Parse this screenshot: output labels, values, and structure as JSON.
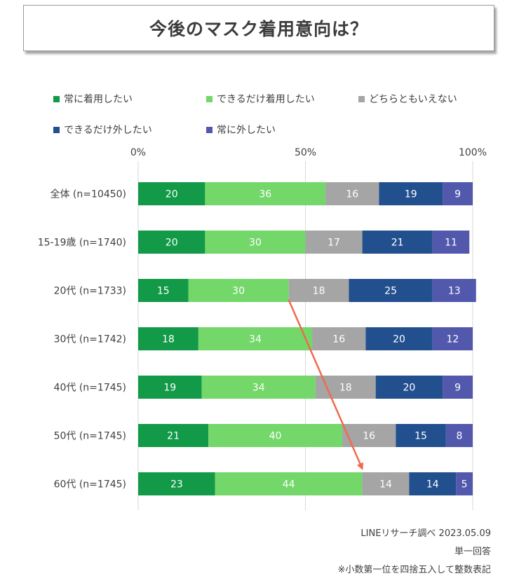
{
  "title": "今後のマスク着用意向は？",
  "chart_data": {
    "type": "stacked-bar-horizontal",
    "title": "今後のマスク着用意向は？",
    "unit": "%",
    "xlim": [
      0,
      100
    ],
    "ticks": [
      {
        "value": 0,
        "label": "0%"
      },
      {
        "value": 50,
        "label": "50%"
      },
      {
        "value": 100,
        "label": "100%"
      }
    ],
    "categories": [
      "全体 (n=10450)",
      "15-19歳 (n=1740)",
      "20代 (n=1733)",
      "30代 (n=1742)",
      "40代 (n=1745)",
      "50代 (n=1745)",
      "60代 (n=1745)"
    ],
    "series": [
      {
        "name": "常に着用したい",
        "color": "#129a48",
        "values": [
          20,
          20,
          15,
          18,
          19,
          21,
          23
        ]
      },
      {
        "name": "できるだけ着用したい",
        "color": "#73d76a",
        "values": [
          36,
          30,
          30,
          34,
          34,
          40,
          44
        ]
      },
      {
        "name": "どちらともいえない",
        "color": "#a5a5a5",
        "values": [
          16,
          17,
          18,
          16,
          18,
          16,
          14
        ]
      },
      {
        "name": "できるだけ外したい",
        "color": "#22508f",
        "values": [
          19,
          21,
          25,
          20,
          20,
          15,
          14
        ]
      },
      {
        "name": "常に外したい",
        "color": "#5258ac",
        "values": [
          9,
          11,
          13,
          12,
          9,
          8,
          5
        ]
      }
    ],
    "annotation": {
      "type": "arrow",
      "color": "#ef6b4f",
      "from": "20代",
      "to": "60代"
    }
  },
  "footer": {
    "source": "LINEリサーチ調べ 2023.05.09",
    "answer_type": "単一回答",
    "rounding_note": "※小数第一位を四捨五入して整数表記"
  }
}
